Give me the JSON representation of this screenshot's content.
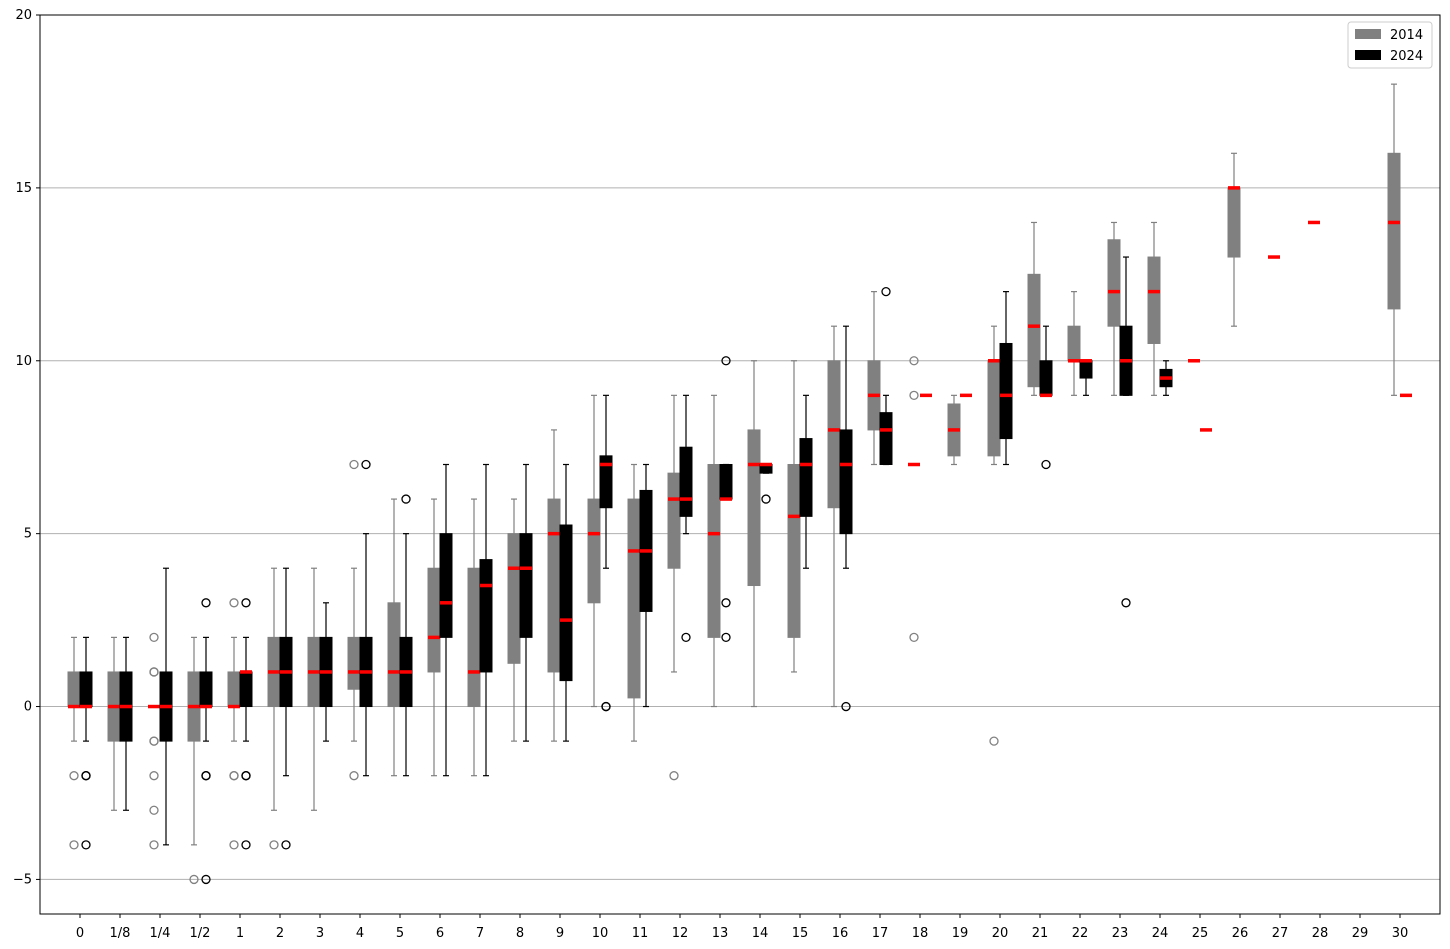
{
  "chart_data": {
    "type": "boxplot",
    "title": "",
    "xlabel": "",
    "ylabel": "",
    "ylim": [
      -6,
      20
    ],
    "yticks": [
      -5,
      0,
      5,
      10,
      15,
      20
    ],
    "ytick_labels": [
      "−5",
      "0",
      "5",
      "10",
      "15",
      "20"
    ],
    "grid": "horizontal",
    "legend_position": "top-right",
    "categories": [
      "0",
      "1/8",
      "1/4",
      "1/2",
      "1",
      "2",
      "3",
      "4",
      "5",
      "6",
      "7",
      "8",
      "9",
      "10",
      "11",
      "12",
      "13",
      "14",
      "15",
      "16",
      "17",
      "18",
      "19",
      "20",
      "21",
      "22",
      "23",
      "24",
      "25",
      "26",
      "27",
      "28",
      "29",
      "30"
    ],
    "series": [
      {
        "name": "2014",
        "color": "#808080",
        "median_color": "#ff0000",
        "boxes": [
          {
            "cat": "0",
            "q1": 0,
            "med": 0,
            "q3": 1,
            "wlo": -1,
            "whi": 2,
            "fliers": [
              -2,
              -4
            ]
          },
          {
            "cat": "1/8",
            "q1": -1,
            "med": 0,
            "q3": 1,
            "wlo": -3,
            "whi": 2,
            "fliers": []
          },
          {
            "cat": "1/4",
            "q1": 0,
            "med": 0,
            "q3": 0,
            "wlo": 0,
            "whi": 0,
            "fliers": [
              2,
              1,
              1,
              -1,
              -1,
              -2,
              -3,
              -4
            ]
          },
          {
            "cat": "1/2",
            "q1": -1,
            "med": 0,
            "q3": 1,
            "wlo": -4,
            "whi": 2,
            "fliers": [
              -5
            ]
          },
          {
            "cat": "1",
            "q1": 0,
            "med": 0,
            "q3": 1,
            "wlo": -1,
            "whi": 2,
            "fliers": [
              3,
              -2,
              -2,
              -4
            ]
          },
          {
            "cat": "2",
            "q1": 0,
            "med": 1,
            "q3": 2,
            "wlo": -3,
            "whi": 4,
            "fliers": [
              -4
            ]
          },
          {
            "cat": "3",
            "q1": 0,
            "med": 1,
            "q3": 2,
            "wlo": -3,
            "whi": 4,
            "fliers": []
          },
          {
            "cat": "4",
            "q1": 0.5,
            "med": 1,
            "q3": 2,
            "wlo": -1,
            "whi": 4,
            "fliers": [
              7,
              -2
            ]
          },
          {
            "cat": "5",
            "q1": 0,
            "med": 1,
            "q3": 3,
            "wlo": -2,
            "whi": 6,
            "fliers": []
          },
          {
            "cat": "6",
            "q1": 1,
            "med": 2,
            "q3": 4,
            "wlo": -2,
            "whi": 6,
            "fliers": []
          },
          {
            "cat": "7",
            "q1": 0,
            "med": 1,
            "q3": 4,
            "wlo": -2,
            "whi": 6,
            "fliers": []
          },
          {
            "cat": "8",
            "q1": 1.25,
            "med": 4,
            "q3": 5,
            "wlo": -1,
            "whi": 6,
            "fliers": []
          },
          {
            "cat": "9",
            "q1": 1,
            "med": 5,
            "q3": 6,
            "wlo": -1,
            "whi": 8,
            "fliers": []
          },
          {
            "cat": "10",
            "q1": 3,
            "med": 5,
            "q3": 6,
            "wlo": 0,
            "whi": 9,
            "fliers": []
          },
          {
            "cat": "11",
            "q1": 0.25,
            "med": 4.5,
            "q3": 6,
            "wlo": -1,
            "whi": 7,
            "fliers": []
          },
          {
            "cat": "12",
            "q1": 4,
            "med": 6,
            "q3": 6.75,
            "wlo": 1,
            "whi": 9,
            "fliers": [
              -2
            ]
          },
          {
            "cat": "13",
            "q1": 2,
            "med": 5,
            "q3": 7,
            "wlo": 0,
            "whi": 9,
            "fliers": []
          },
          {
            "cat": "14",
            "q1": 3.5,
            "med": 7,
            "q3": 8,
            "wlo": 0,
            "whi": 10,
            "fliers": []
          },
          {
            "cat": "15",
            "q1": 2,
            "med": 5.5,
            "q3": 7,
            "wlo": 1,
            "whi": 10,
            "fliers": []
          },
          {
            "cat": "16",
            "q1": 5.75,
            "med": 8,
            "q3": 10,
            "wlo": 0,
            "whi": 11,
            "fliers": []
          },
          {
            "cat": "17",
            "q1": 8,
            "med": 9,
            "q3": 10,
            "wlo": 7,
            "whi": 12,
            "fliers": []
          },
          {
            "cat": "18",
            "q1": 7,
            "med": 7,
            "q3": 7,
            "wlo": 7,
            "whi": 7,
            "fliers": [
              10,
              9,
              2
            ]
          },
          {
            "cat": "19",
            "q1": 7.25,
            "med": 8,
            "q3": 8.75,
            "wlo": 7,
            "whi": 9,
            "fliers": []
          },
          {
            "cat": "20",
            "q1": 7.25,
            "med": 10,
            "q3": 10,
            "wlo": 7,
            "whi": 11,
            "fliers": [
              -1
            ]
          },
          {
            "cat": "21",
            "q1": 9.25,
            "med": 11,
            "q3": 12.5,
            "wlo": 9,
            "whi": 14,
            "fliers": []
          },
          {
            "cat": "22",
            "q1": 10,
            "med": 10,
            "q3": 11,
            "wlo": 9,
            "whi": 12,
            "fliers": []
          },
          {
            "cat": "23",
            "q1": 11,
            "med": 12,
            "q3": 13.5,
            "wlo": 9,
            "whi": 14,
            "fliers": []
          },
          {
            "cat": "24",
            "q1": 10.5,
            "med": 12,
            "q3": 13,
            "wlo": 9,
            "whi": 14,
            "fliers": []
          },
          {
            "cat": "25",
            "q1": 10,
            "med": 10,
            "q3": 10,
            "wlo": 10,
            "whi": 10,
            "fliers": []
          },
          {
            "cat": "26",
            "q1": 13,
            "med": 15,
            "q3": 15,
            "wlo": 11,
            "whi": 16,
            "fliers": []
          },
          {
            "cat": "27",
            "q1": 13,
            "med": 13,
            "q3": 13,
            "wlo": 13,
            "whi": 13,
            "fliers": []
          },
          {
            "cat": "28",
            "q1": 14,
            "med": 14,
            "q3": 14,
            "wlo": 14,
            "whi": 14,
            "fliers": []
          },
          {
            "cat": "30",
            "q1": 11.5,
            "med": 14,
            "q3": 16,
            "wlo": 9,
            "whi": 18,
            "fliers": []
          }
        ]
      },
      {
        "name": "2024",
        "color": "#000000",
        "median_color": "#ff0000",
        "boxes": [
          {
            "cat": "0",
            "q1": 0,
            "med": 0,
            "q3": 1,
            "wlo": -1,
            "whi": 2,
            "fliers": [
              -2,
              -2,
              -4
            ]
          },
          {
            "cat": "1/8",
            "q1": -1,
            "med": 0,
            "q3": 1,
            "wlo": -3,
            "whi": 2,
            "fliers": []
          },
          {
            "cat": "1/4",
            "q1": -1,
            "med": 0,
            "q3": 1,
            "wlo": -4,
            "whi": 4,
            "fliers": []
          },
          {
            "cat": "1/2",
            "q1": 0,
            "med": 0,
            "q3": 1,
            "wlo": -1,
            "whi": 2,
            "fliers": [
              3,
              -2,
              -2,
              -5
            ]
          },
          {
            "cat": "1",
            "q1": 0,
            "med": 1,
            "q3": 1,
            "wlo": -1,
            "whi": 2,
            "fliers": [
              3,
              -2,
              -2,
              -4
            ]
          },
          {
            "cat": "2",
            "q1": 0,
            "med": 1,
            "q3": 2,
            "wlo": -2,
            "whi": 4,
            "fliers": [
              -4
            ]
          },
          {
            "cat": "3",
            "q1": 0,
            "med": 1,
            "q3": 2,
            "wlo": -1,
            "whi": 3,
            "fliers": []
          },
          {
            "cat": "4",
            "q1": 0,
            "med": 1,
            "q3": 2,
            "wlo": -2,
            "whi": 5,
            "fliers": [
              7
            ]
          },
          {
            "cat": "5",
            "q1": 0,
            "med": 1,
            "q3": 2,
            "wlo": -2,
            "whi": 5,
            "fliers": [
              6
            ]
          },
          {
            "cat": "6",
            "q1": 2,
            "med": 3,
            "q3": 5,
            "wlo": -2,
            "whi": 7,
            "fliers": []
          },
          {
            "cat": "7",
            "q1": 1,
            "med": 3.5,
            "q3": 4.25,
            "wlo": -2,
            "whi": 7,
            "fliers": []
          },
          {
            "cat": "8",
            "q1": 2,
            "med": 4,
            "q3": 5,
            "wlo": -1,
            "whi": 7,
            "fliers": []
          },
          {
            "cat": "9",
            "q1": 0.75,
            "med": 2.5,
            "q3": 5.25,
            "wlo": -1,
            "whi": 7,
            "fliers": []
          },
          {
            "cat": "10",
            "q1": 5.75,
            "med": 7,
            "q3": 7.25,
            "wlo": 4,
            "whi": 9,
            "fliers": [
              0,
              0
            ]
          },
          {
            "cat": "11",
            "q1": 2.75,
            "med": 4.5,
            "q3": 6.25,
            "wlo": 0,
            "whi": 7,
            "fliers": []
          },
          {
            "cat": "12",
            "q1": 5.5,
            "med": 6,
            "q3": 7.5,
            "wlo": 5,
            "whi": 9,
            "fliers": [
              2
            ]
          },
          {
            "cat": "13",
            "q1": 6,
            "med": 6,
            "q3": 7,
            "wlo": 6,
            "whi": 7,
            "fliers": [
              10,
              3,
              2
            ]
          },
          {
            "cat": "14",
            "q1": 6.75,
            "med": 7,
            "q3": 7,
            "wlo": 6.75,
            "whi": 7,
            "fliers": [
              6
            ]
          },
          {
            "cat": "15",
            "q1": 5.5,
            "med": 7,
            "q3": 7.75,
            "wlo": 4,
            "whi": 9,
            "fliers": []
          },
          {
            "cat": "16",
            "q1": 5,
            "med": 7,
            "q3": 8,
            "wlo": 4,
            "whi": 11,
            "fliers": [
              0
            ]
          },
          {
            "cat": "17",
            "q1": 7,
            "med": 8,
            "q3": 8.5,
            "wlo": 7,
            "whi": 9,
            "fliers": [
              12
            ]
          },
          {
            "cat": "18",
            "q1": 9,
            "med": 9,
            "q3": 9,
            "wlo": 9,
            "whi": 9,
            "fliers": []
          },
          {
            "cat": "19",
            "q1": 9,
            "med": 9,
            "q3": 9,
            "wlo": 9,
            "whi": 9,
            "fliers": []
          },
          {
            "cat": "20",
            "q1": 7.75,
            "med": 9,
            "q3": 10.5,
            "wlo": 7,
            "whi": 12,
            "fliers": []
          },
          {
            "cat": "21",
            "q1": 9,
            "med": 9,
            "q3": 10,
            "wlo": 9,
            "whi": 11,
            "fliers": [
              7
            ]
          },
          {
            "cat": "22",
            "q1": 9.5,
            "med": 10,
            "q3": 10,
            "wlo": 9,
            "whi": 10,
            "fliers": []
          },
          {
            "cat": "23",
            "q1": 9,
            "med": 10,
            "q3": 11,
            "wlo": 9,
            "whi": 13,
            "fliers": [
              3
            ]
          },
          {
            "cat": "24",
            "q1": 9.25,
            "med": 9.5,
            "q3": 9.75,
            "wlo": 9,
            "whi": 10,
            "fliers": []
          },
          {
            "cat": "25",
            "q1": 8,
            "med": 8,
            "q3": 8,
            "wlo": 8,
            "whi": 8,
            "fliers": []
          },
          {
            "cat": "30",
            "q1": 9,
            "med": 9,
            "q3": 9,
            "wlo": 9,
            "whi": 9,
            "fliers": []
          }
        ]
      }
    ]
  }
}
